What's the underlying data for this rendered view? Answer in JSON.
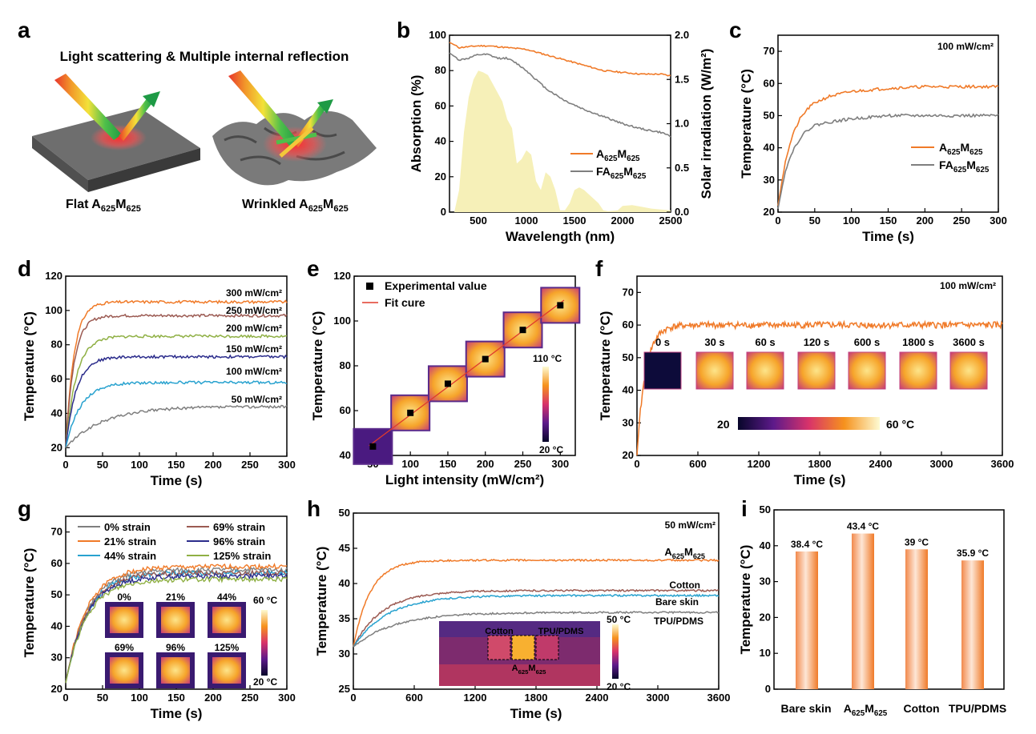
{
  "panels": {
    "a": {
      "letter": "a",
      "title": "Light scattering & Multiple internal reflection",
      "label_flat_main": "Flat A",
      "label_wrinkled_main": "Wrinkled A",
      "sub1": "625",
      "mid": "M",
      "sub2": "625"
    },
    "b": {
      "letter": "b"
    },
    "c": {
      "letter": "c"
    },
    "d": {
      "letter": "d"
    },
    "e": {
      "letter": "e"
    },
    "f": {
      "letter": "f"
    },
    "g": {
      "letter": "g"
    },
    "h": {
      "letter": "h"
    },
    "i": {
      "letter": "i"
    }
  },
  "colors": {
    "orange": "#f07a28",
    "gray": "#7f7f7f",
    "brown": "#9b5a52",
    "olive": "#8fb044",
    "navy": "#2c2d8c",
    "cyan": "#28a2cf",
    "solar": "#f6f0b8",
    "red_fit": "#e03b2c"
  },
  "chart_data": [
    {
      "id": "b",
      "type": "line",
      "xlabel": "Wavelength (nm)",
      "ylabel": "Absorption (%)",
      "ylabel_right": "Solar irradiation (W/m²)",
      "xlim": [
        200,
        2500
      ],
      "ylim": [
        0,
        100
      ],
      "ylim_right": [
        0,
        2.0
      ],
      "xticks": [
        500,
        1000,
        1500,
        2000,
        2500
      ],
      "yticks": [
        0,
        20,
        40,
        60,
        80,
        100
      ],
      "yticks_right": [
        "0.0",
        "0.5",
        "1.0",
        "1.5",
        "2.0"
      ],
      "series": [
        {
          "name": "A625M625",
          "legend_main": "A",
          "color": "orange",
          "x": [
            200,
            300,
            400,
            500,
            600,
            800,
            1000,
            1200,
            1400,
            1600,
            1800,
            2000,
            2200,
            2400,
            2500
          ],
          "y": [
            96,
            93,
            93.5,
            94,
            94,
            93,
            92,
            89,
            86,
            83,
            80,
            79,
            78,
            78,
            77
          ]
        },
        {
          "name": "FA625M625",
          "legend_main": "FA",
          "color": "gray",
          "x": [
            200,
            300,
            400,
            500,
            600,
            700,
            800,
            900,
            1000,
            1100,
            1200,
            1400,
            1600,
            1800,
            2000,
            2200,
            2400,
            2500
          ],
          "y": [
            90,
            86,
            87,
            89,
            89,
            87,
            87,
            84,
            80,
            75,
            70,
            63,
            58,
            54,
            50,
            47,
            45,
            43
          ]
        }
      ],
      "solar": {
        "x": [
          250,
          300,
          350,
          400,
          450,
          500,
          550,
          600,
          650,
          700,
          750,
          800,
          850,
          900,
          950,
          1000,
          1050,
          1100,
          1150,
          1200,
          1250,
          1300,
          1350,
          1400,
          1450,
          1500,
          1550,
          1600,
          1650,
          1700,
          1750,
          1800,
          1850,
          1950,
          2000,
          2100,
          2200,
          2300,
          2400,
          2500
        ],
        "y": [
          0,
          0.25,
          0.9,
          1.3,
          1.5,
          1.6,
          1.58,
          1.55,
          1.45,
          1.35,
          1.25,
          1.05,
          0.95,
          0.55,
          0.6,
          0.7,
          0.65,
          0.35,
          0.25,
          0.45,
          0.4,
          0.25,
          0.02,
          0.02,
          0.1,
          0.25,
          0.28,
          0.25,
          0.2,
          0.15,
          0.1,
          0.02,
          0.01,
          0.02,
          0.07,
          0.08,
          0.06,
          0.04,
          0.03,
          0.02
        ]
      }
    },
    {
      "id": "c",
      "type": "line",
      "xlabel": "Time (s)",
      "ylabel": "Temperature (°C)",
      "annotation": "100 mW/cm²",
      "xlim": [
        0,
        300
      ],
      "ylim": [
        20,
        75
      ],
      "xticks": [
        0,
        50,
        100,
        150,
        200,
        250,
        300
      ],
      "yticks": [
        20,
        30,
        40,
        50,
        60,
        70
      ],
      "series": [
        {
          "name": "A625M625",
          "legend_main": "A",
          "color": "orange",
          "x": [
            0,
            10,
            20,
            30,
            40,
            50,
            70,
            100,
            150,
            200,
            250,
            300
          ],
          "y": [
            22,
            36,
            44,
            49,
            52,
            54,
            56,
            57.5,
            58.5,
            59,
            59,
            59
          ]
        },
        {
          "name": "FA625M625",
          "legend_main": "FA",
          "color": "gray",
          "x": [
            0,
            10,
            20,
            30,
            40,
            50,
            70,
            100,
            150,
            200,
            250,
            300
          ],
          "y": [
            21,
            33,
            39,
            43,
            45.5,
            47,
            48,
            49,
            50,
            50,
            50,
            50
          ]
        }
      ]
    },
    {
      "id": "d",
      "type": "line",
      "xlabel": "Time (s)",
      "ylabel": "Temperature (°C)",
      "xlim": [
        0,
        300
      ],
      "ylim": [
        15,
        120
      ],
      "xticks": [
        0,
        50,
        100,
        150,
        200,
        250,
        300
      ],
      "yticks": [
        20,
        40,
        60,
        80,
        100,
        120
      ],
      "series": [
        {
          "name": "300 mW/cm²",
          "color": "orange",
          "final": 105,
          "rise": 0.09
        },
        {
          "name": "250 mW/cm²",
          "color": "brown",
          "final": 97,
          "rise": 0.09
        },
        {
          "name": "200 mW/cm²",
          "color": "olive",
          "final": 85,
          "rise": 0.07
        },
        {
          "name": "150 mW/cm²",
          "color": "navy",
          "final": 73,
          "rise": 0.07
        },
        {
          "name": "100 mW/cm²",
          "color": "cyan",
          "final": 58,
          "rise": 0.05
        },
        {
          "name": "50 mW/cm²",
          "color": "gray",
          "final": 44,
          "rise": 0.02
        }
      ]
    },
    {
      "id": "e",
      "type": "scatter",
      "xlabel": "Light intensity (mW/cm²)",
      "ylabel": "Temperature (°C)",
      "xlim": [
        25,
        320
      ],
      "ylim": [
        40,
        120
      ],
      "xticks": [
        50,
        100,
        150,
        200,
        250,
        300
      ],
      "yticks": [
        40,
        60,
        80,
        100,
        120
      ],
      "legend": [
        "Experimental value",
        "Fit cure"
      ],
      "x": [
        50,
        100,
        150,
        200,
        250,
        300
      ],
      "y": [
        44,
        59,
        72,
        83,
        96,
        107
      ],
      "colorbar": {
        "top": "110 °C",
        "bottom": "20 °C"
      }
    },
    {
      "id": "f",
      "type": "line",
      "xlabel": "Time (s)",
      "ylabel": "Temperature (°C)",
      "annotation": "100 mW/cm²",
      "xlim": [
        0,
        3600
      ],
      "ylim": [
        20,
        75
      ],
      "xticks": [
        0,
        600,
        1200,
        1800,
        2400,
        3000,
        3600
      ],
      "yticks": [
        20,
        30,
        40,
        50,
        60,
        70
      ],
      "series": [
        {
          "name": "A625M625",
          "color": "orange",
          "final": 60
        }
      ],
      "thumb_labels": [
        "0 s",
        "30 s",
        "60 s",
        "120 s",
        "600 s",
        "1800 s",
        "3600 s"
      ],
      "colorbar": {
        "left": "20",
        "right": "60 °C"
      }
    },
    {
      "id": "g",
      "type": "line",
      "xlabel": "Time (s)",
      "ylabel": "Temperature (°C)",
      "xlim": [
        0,
        300
      ],
      "ylim": [
        20,
        75
      ],
      "xticks": [
        0,
        50,
        100,
        150,
        200,
        250,
        300
      ],
      "yticks": [
        20,
        30,
        40,
        50,
        60,
        70
      ],
      "series": [
        {
          "name": "0% strain",
          "color": "gray",
          "final": 58
        },
        {
          "name": "21% strain",
          "color": "orange",
          "final": 59
        },
        {
          "name": "44% strain",
          "color": "cyan",
          "final": 57
        },
        {
          "name": "69% strain",
          "color": "brown",
          "final": 57
        },
        {
          "name": "96% strain",
          "color": "navy",
          "final": 56
        },
        {
          "name": "125% strain",
          "color": "olive",
          "final": 55
        }
      ],
      "thumb_labels": [
        "0%",
        "21%",
        "44%",
        "69%",
        "96%",
        "125%"
      ],
      "colorbar": {
        "top": "60 °C",
        "bottom": "20 °C"
      }
    },
    {
      "id": "h",
      "type": "line",
      "xlabel": "Time (s)",
      "ylabel": "Temperature (°C)",
      "annotation": "50 mW/cm²",
      "xlim": [
        0,
        3600
      ],
      "ylim": [
        25,
        50
      ],
      "xticks": [
        0,
        600,
        1200,
        1800,
        2400,
        3000,
        3600
      ],
      "yticks": [
        25,
        30,
        35,
        40,
        45,
        50
      ],
      "series": [
        {
          "name": "A625M625",
          "legend_main": "A",
          "color": "orange",
          "final": 43.3
        },
        {
          "name": "Cotton",
          "color": "brown",
          "final": 39
        },
        {
          "name": "Bare skin",
          "color": "cyan",
          "final": 38.3
        },
        {
          "name": "TPU/PDMS",
          "color": "gray",
          "final": 35.9
        }
      ],
      "inset_labels": [
        "Cotton",
        "TPU/PDMS",
        "A625M625"
      ],
      "colorbar": {
        "top": "50 °C",
        "bottom": "20 °C"
      }
    },
    {
      "id": "i",
      "type": "bar",
      "ylabel": "Temperature (°C)",
      "ylim": [
        0,
        50
      ],
      "yticks": [
        0,
        10,
        20,
        30,
        40,
        50
      ],
      "categories": [
        "Bare skin",
        "A625M625",
        "Cotton",
        "TPU/PDMS"
      ],
      "values": [
        38.4,
        43.4,
        39,
        35.9
      ],
      "value_labels": [
        "38.4 °C",
        "43.4 °C",
        "39 °C",
        "35.9 °C"
      ]
    }
  ]
}
